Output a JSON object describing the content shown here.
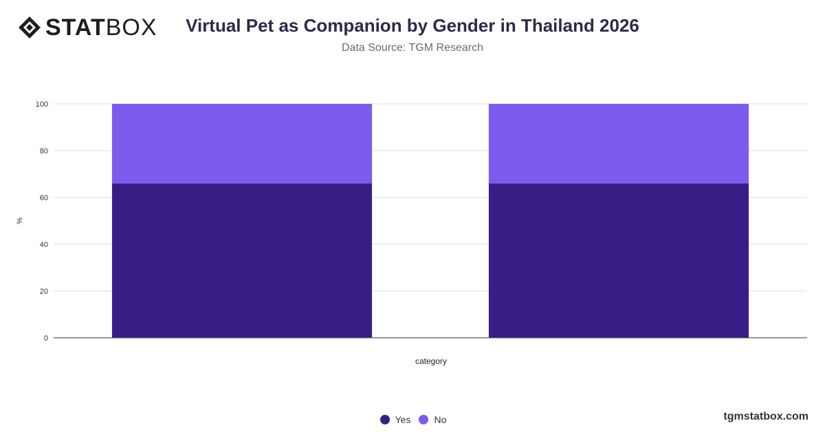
{
  "brand": {
    "logo_bold": "STAT",
    "logo_light": "BOX",
    "watermark": "tgmstatbox.com"
  },
  "header": {
    "title": "Virtual Pet as Companion by Gender in Thailand 2026",
    "subtitle": "Data Source: TGM Research"
  },
  "colors": {
    "yes": "#371e86",
    "no": "#7b5cef",
    "grid": "#dddddd",
    "axis": "#333333"
  },
  "chart_data": {
    "type": "bar",
    "stacked": true,
    "title": "Virtual Pet as Companion by Gender in Thailand 2026",
    "subtitle": "Data Source: TGM Research",
    "xlabel": "category",
    "ylabel": "%",
    "ylim": [
      0,
      100
    ],
    "yticks": [
      0,
      20,
      40,
      60,
      80,
      100
    ],
    "categories": [
      "",
      ""
    ],
    "series": [
      {
        "name": "Yes",
        "values": [
          66,
          66
        ]
      },
      {
        "name": "No",
        "values": [
          34,
          34
        ]
      }
    ],
    "grid": true,
    "legend_position": "bottom"
  }
}
